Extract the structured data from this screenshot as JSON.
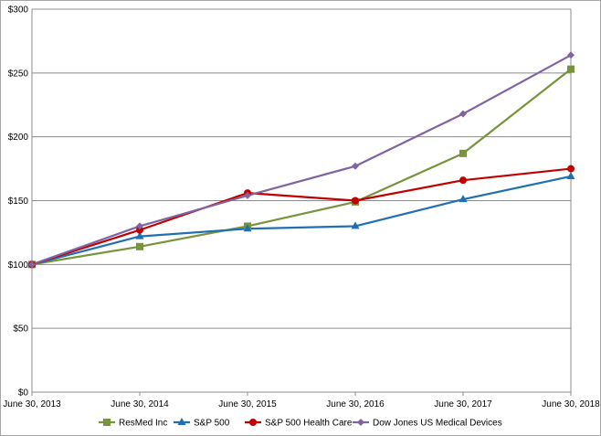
{
  "chart_data": {
    "type": "line",
    "title": "",
    "xlabel": "",
    "ylabel": "",
    "categories": [
      "June 30, 2013",
      "June 30, 2014",
      "June 30, 2015",
      "June 30, 2016",
      "June 30, 2017",
      "June 30, 2018"
    ],
    "y_ticks": [
      "$0",
      "$50",
      "$100",
      "$150",
      "$200",
      "$250",
      "$300"
    ],
    "ylim": [
      0,
      300
    ],
    "grid": "horizontal",
    "legend_position": "bottom",
    "series": [
      {
        "name": "ResMed Inc",
        "color": "#77933C",
        "marker": "square",
        "values": [
          100,
          114,
          130,
          149,
          187,
          253
        ]
      },
      {
        "name": "S&P 500",
        "color": "#1F6FB4",
        "marker": "triangle",
        "values": [
          100,
          122,
          128,
          130,
          151,
          169
        ]
      },
      {
        "name": "S&P 500 Health Care",
        "color": "#C00000",
        "marker": "circle",
        "values": [
          100,
          127,
          156,
          150,
          166,
          175
        ]
      },
      {
        "name": "Dow Jones US Medical Devices",
        "color": "#8064A2",
        "marker": "diamond",
        "values": [
          100,
          130,
          154,
          177,
          218,
          264
        ]
      }
    ]
  }
}
